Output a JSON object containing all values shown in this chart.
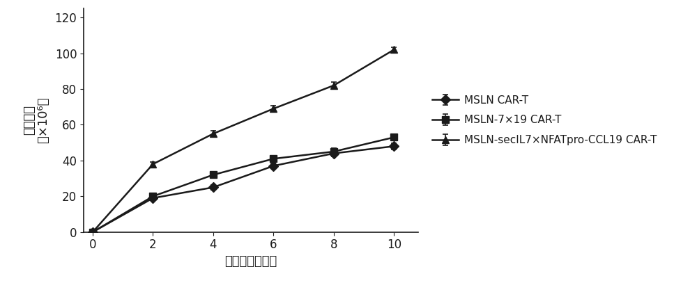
{
  "x": [
    0,
    2,
    4,
    6,
    8,
    10
  ],
  "series": [
    {
      "label": "MSLN CAR-T",
      "y": [
        0,
        19,
        25,
        37,
        44,
        48
      ],
      "yerr": [
        0,
        1.2,
        1.2,
        1.2,
        1.8,
        1.8
      ],
      "marker": "D",
      "color": "#1a1a1a",
      "linestyle": "-"
    },
    {
      "label": "MSLN-7×19 CAR-T",
      "y": [
        0,
        20,
        32,
        41,
        45,
        53
      ],
      "yerr": [
        0,
        1.2,
        1.2,
        1.2,
        1.8,
        1.8
      ],
      "marker": "s",
      "color": "#1a1a1a",
      "linestyle": "-"
    },
    {
      "label": "MSLN-secIL7×NFATpro-CCL19 CAR-T",
      "y": [
        0,
        38,
        55,
        69,
        82,
        102
      ],
      "yerr": [
        0,
        1.2,
        1.5,
        1.5,
        2.0,
        1.5
      ],
      "marker": "^",
      "color": "#1a1a1a",
      "linestyle": "-"
    }
  ],
  "xlabel": "培养时间（天）",
  "ylabel_line1": "细胞数量",
  "ylabel_line2": "（×10⁶）",
  "xlim": [
    -0.3,
    10.8
  ],
  "ylim": [
    0,
    125
  ],
  "yticks": [
    0,
    20,
    40,
    60,
    80,
    100,
    120
  ],
  "xticks": [
    0,
    2,
    4,
    6,
    8,
    10
  ],
  "background_color": "#ffffff",
  "linewidth": 1.8,
  "markersize": 7,
  "font_color": "#1a1a1a",
  "xlabel_fontsize": 13,
  "ylabel_fontsize": 13,
  "tick_fontsize": 12,
  "legend_fontsize": 11
}
